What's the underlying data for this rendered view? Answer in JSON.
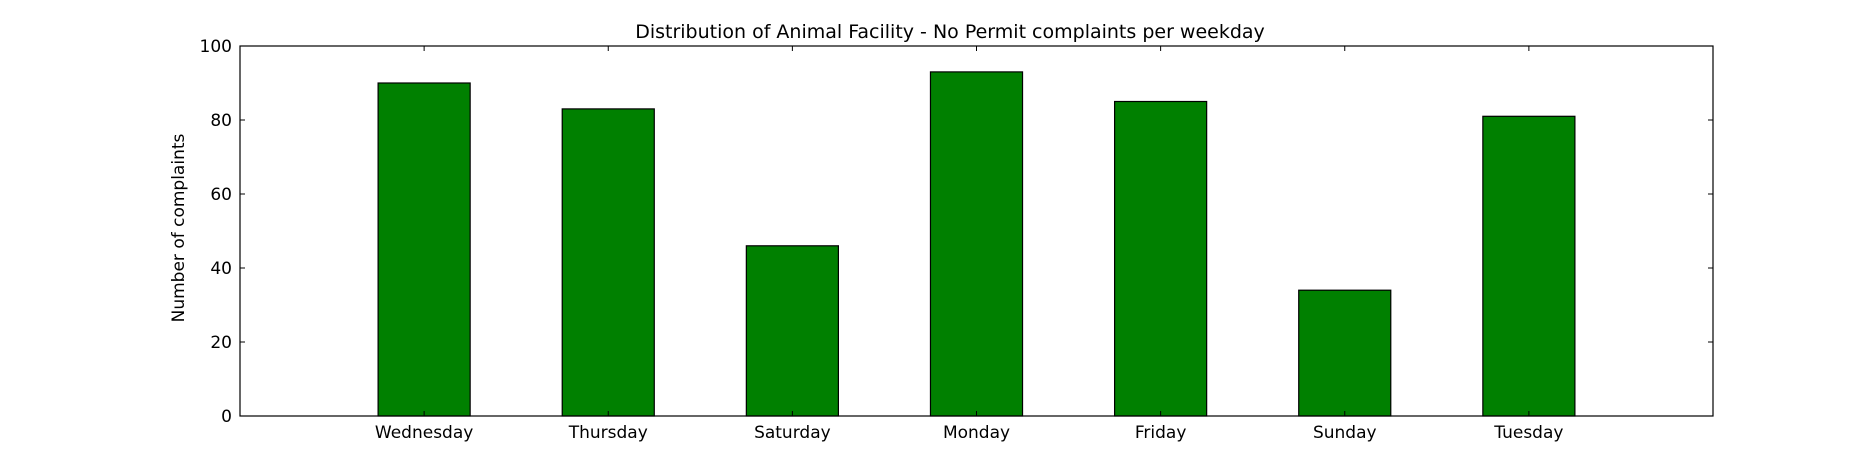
{
  "chart_data": {
    "type": "bar",
    "title": "Distribution of  Animal Facility - No Permit complaints per weekday",
    "xlabel": "",
    "ylabel": "Number of complaints",
    "categories": [
      "Wednesday",
      "Thursday",
      "Saturday",
      "Monday",
      "Friday",
      "Sunday",
      "Tuesday"
    ],
    "values": [
      90,
      83,
      46,
      93,
      85,
      34,
      81
    ],
    "ylim": [
      0,
      100
    ],
    "yticks": [
      0,
      20,
      40,
      60,
      80,
      100
    ],
    "grid": false,
    "legend": "none",
    "bar_color": "#008000",
    "edge_color": "#000000"
  }
}
